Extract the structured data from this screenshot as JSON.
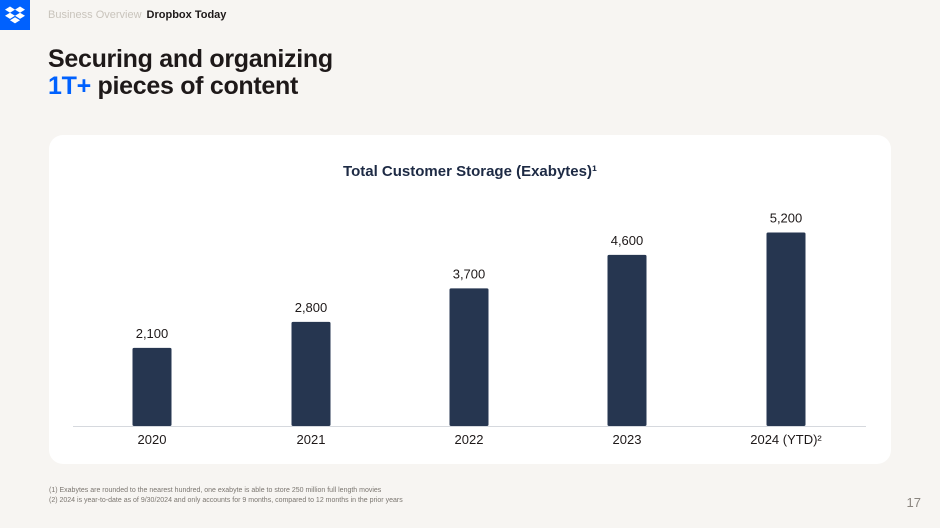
{
  "header": {
    "breadcrumb_inactive": "Business Overview",
    "breadcrumb_active": "Dropbox Today"
  },
  "headline": {
    "line1": "Securing and organizing",
    "accent": "1T+",
    "line2_rest": " pieces of content"
  },
  "colors": {
    "accent": "#0061fe",
    "bar": "#263650",
    "background": "#f7f5f2",
    "card": "#ffffff"
  },
  "icons": {
    "logo": "dropbox-logo-icon"
  },
  "chart_data": {
    "type": "bar",
    "title": "Total Customer Storage (Exabytes)¹",
    "categories": [
      "2020",
      "2021",
      "2022",
      "2023",
      "2024 (YTD)²"
    ],
    "values": [
      2100,
      2800,
      3700,
      4600,
      5200
    ],
    "data_labels": [
      "2,100",
      "2,800",
      "3,700",
      "4,600",
      "5,200"
    ],
    "xlabel": "",
    "ylabel": "",
    "grid": false,
    "legend": "none"
  },
  "footnotes": [
    "(1) Exabytes are rounded to the nearest hundred, one exabyte is able to store 250 million full length movies",
    "(2) 2024 is year-to-date as of 9/30/2024 and only accounts for 9 months, compared to 12 months in the prior years"
  ],
  "page_number": "17"
}
